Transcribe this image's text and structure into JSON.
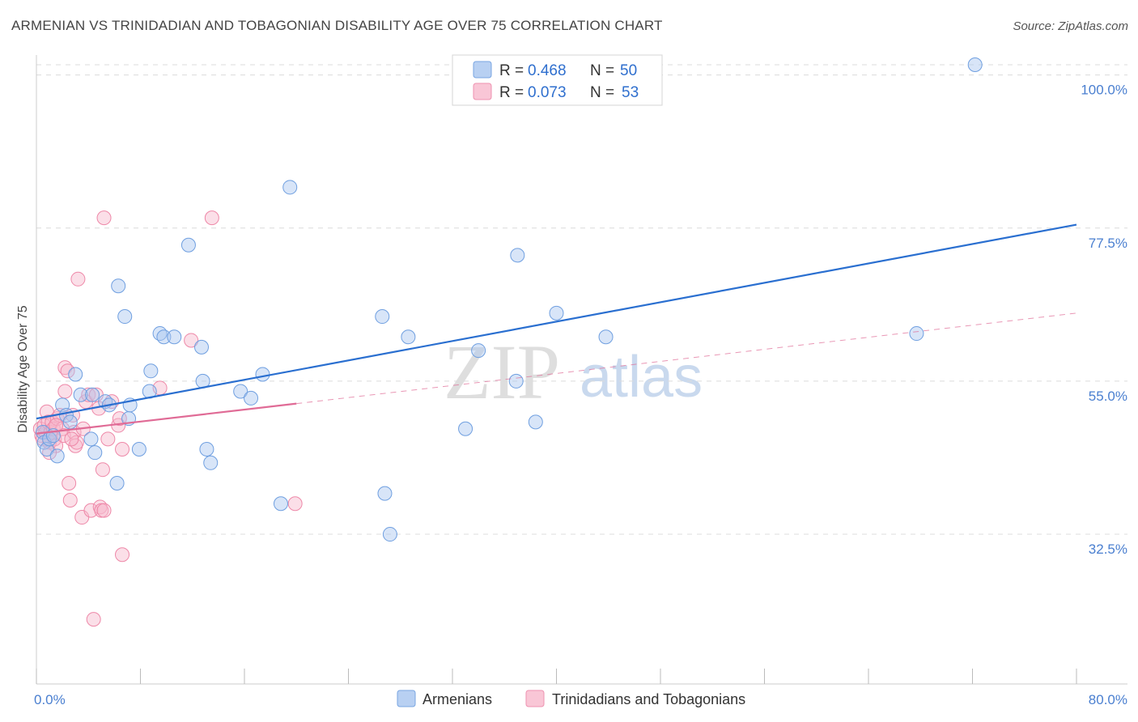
{
  "title": "ARMENIAN VS TRINIDADIAN AND TOBAGONIAN DISABILITY AGE OVER 75 CORRELATION CHART",
  "source": "Source: ZipAtlas.com",
  "watermark": {
    "zip": "ZIP",
    "atlas": "atlas"
  },
  "colors": {
    "armenian_fill": "#a9c6f0",
    "armenian_stroke": "#6f9fe0",
    "armenian_line": "#2a6fd0",
    "trini_fill": "#f7b9cc",
    "trini_stroke": "#ee88a8",
    "trini_line": "#e06b96",
    "grid": "#dcdcdc",
    "tick_text": "#4a7fd0"
  },
  "legend": {
    "rows": [
      {
        "r_label": "R = ",
        "r_value": "0.468",
        "n_label": "N = ",
        "n_value": "50"
      },
      {
        "r_label": "R = ",
        "r_value": "0.073",
        "n_label": "N = ",
        "n_value": "53"
      }
    ]
  },
  "chart_data": {
    "type": "scatter",
    "title": "ARMENIAN VS TRINIDADIAN AND TOBAGONIAN DISABILITY AGE OVER 75 CORRELATION CHART",
    "xlabel": "",
    "ylabel": "Disability Age Over 75",
    "xlim": [
      0,
      80
    ],
    "ylim": [
      10.5,
      101.5
    ],
    "x_tick_labels": [
      "0.0%",
      "80.0%"
    ],
    "y_ticks": [
      32.5,
      55.0,
      77.5,
      100.0
    ],
    "y_tick_labels": [
      "32.5%",
      "55.0%",
      "77.5%",
      "100.0%"
    ],
    "series": [
      {
        "name": "Armenians",
        "points": [
          [
            0.5,
            47.5
          ],
          [
            0.6,
            46.0
          ],
          [
            0.8,
            45.0
          ],
          [
            1.0,
            46.5
          ],
          [
            1.3,
            47.0
          ],
          [
            1.6,
            44.0
          ],
          [
            2.0,
            51.5
          ],
          [
            2.3,
            50.0
          ],
          [
            2.6,
            49.0
          ],
          [
            3.0,
            56.0
          ],
          [
            3.4,
            53.0
          ],
          [
            4.3,
            53.0
          ],
          [
            4.2,
            46.5
          ],
          [
            4.5,
            44.5
          ],
          [
            5.3,
            52.0
          ],
          [
            5.6,
            51.5
          ],
          [
            6.2,
            40.0
          ],
          [
            6.3,
            69.0
          ],
          [
            6.8,
            64.5
          ],
          [
            7.1,
            49.5
          ],
          [
            7.2,
            51.5
          ],
          [
            7.9,
            45.0
          ],
          [
            8.7,
            53.5
          ],
          [
            8.8,
            56.5
          ],
          [
            9.5,
            62.0
          ],
          [
            9.8,
            61.5
          ],
          [
            10.6,
            61.5
          ],
          [
            11.7,
            75.0
          ],
          [
            12.7,
            60.0
          ],
          [
            12.8,
            55.0
          ],
          [
            13.1,
            45.0
          ],
          [
            13.4,
            43.0
          ],
          [
            15.7,
            53.5
          ],
          [
            16.5,
            52.5
          ],
          [
            17.4,
            56.0
          ],
          [
            18.8,
            37.0
          ],
          [
            19.5,
            83.5
          ],
          [
            26.6,
            64.5
          ],
          [
            26.8,
            38.5
          ],
          [
            27.2,
            32.5
          ],
          [
            28.6,
            61.5
          ],
          [
            33.0,
            48.0
          ],
          [
            34.0,
            59.5
          ],
          [
            36.9,
            55.0
          ],
          [
            37.0,
            73.5
          ],
          [
            38.4,
            49.0
          ],
          [
            40.0,
            65.0
          ],
          [
            43.8,
            61.5
          ],
          [
            67.7,
            62.0
          ],
          [
            72.2,
            101.5
          ]
        ],
        "trend": {
          "x": [
            0,
            80
          ],
          "y": [
            49.5,
            78.0
          ]
        }
      },
      {
        "name": "Trinidadians and Tobagonians",
        "points": [
          [
            0.3,
            48.0
          ],
          [
            0.4,
            47.0
          ],
          [
            0.5,
            46.5
          ],
          [
            0.6,
            48.5
          ],
          [
            0.7,
            47.5
          ],
          [
            0.8,
            50.5
          ],
          [
            0.9,
            49.0
          ],
          [
            1.0,
            46.0
          ],
          [
            1.1,
            47.5
          ],
          [
            1.2,
            49.0
          ],
          [
            1.3,
            48.0
          ],
          [
            1.4,
            46.5
          ],
          [
            1.5,
            45.5
          ],
          [
            1.6,
            49.5
          ],
          [
            1.8,
            50.0
          ],
          [
            2.0,
            48.0
          ],
          [
            2.1,
            47.0
          ],
          [
            2.2,
            57.0
          ],
          [
            2.2,
            53.5
          ],
          [
            2.4,
            56.5
          ],
          [
            2.5,
            40.0
          ],
          [
            2.6,
            37.5
          ],
          [
            2.8,
            50.0
          ],
          [
            2.9,
            47.5
          ],
          [
            3.0,
            45.5
          ],
          [
            3.1,
            46.0
          ],
          [
            3.2,
            70.0
          ],
          [
            3.5,
            35.0
          ],
          [
            3.6,
            48.0
          ],
          [
            3.8,
            52.0
          ],
          [
            4.0,
            53.0
          ],
          [
            4.2,
            36.0
          ],
          [
            4.4,
            20.0
          ],
          [
            4.6,
            53.0
          ],
          [
            4.8,
            51.0
          ],
          [
            4.9,
            36.5
          ],
          [
            5.0,
            36.0
          ],
          [
            5.1,
            42.0
          ],
          [
            5.2,
            36.0
          ],
          [
            5.2,
            79.0
          ],
          [
            5.5,
            46.5
          ],
          [
            5.8,
            52.0
          ],
          [
            6.3,
            48.5
          ],
          [
            6.4,
            49.5
          ],
          [
            6.6,
            29.5
          ],
          [
            6.6,
            45.0
          ],
          [
            9.5,
            54.0
          ],
          [
            11.9,
            61.0
          ],
          [
            13.5,
            79.0
          ],
          [
            19.9,
            37.0
          ],
          [
            1.0,
            44.5
          ],
          [
            1.5,
            48.5
          ],
          [
            2.7,
            46.5
          ]
        ],
        "trend": {
          "x": [
            0,
            20
          ],
          "y": [
            47.3,
            51.7
          ]
        },
        "trend_dashed": {
          "x": [
            20,
            80
          ],
          "y": [
            51.7,
            65.0
          ]
        }
      }
    ]
  },
  "bottom_legend": [
    {
      "label": "Armenians"
    },
    {
      "label": "Trinidadians and Tobagonians"
    }
  ]
}
